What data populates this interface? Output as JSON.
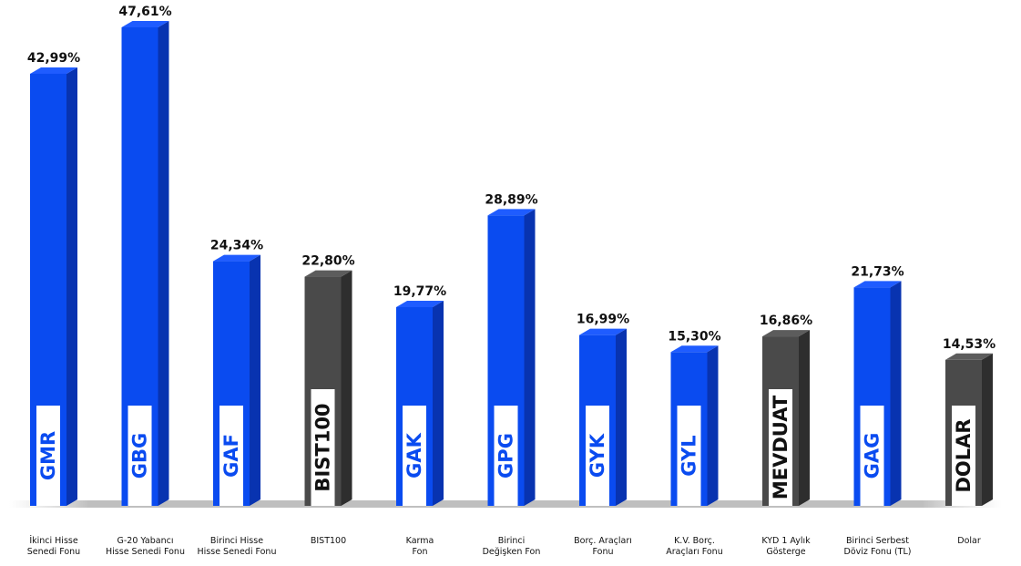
{
  "chart_data": {
    "type": "bar",
    "title": "",
    "xlabel": "",
    "ylabel": "",
    "ylim": [
      0,
      50
    ],
    "grid": false,
    "legend": "none",
    "categories": [
      "İkinci Hisse\nSenedi Fonu",
      "G-20 Yabancı\nHisse Senedi Fonu",
      "Birinci Hisse\nHisse Senedi Fonu",
      "BIST100",
      "Karma\nFon",
      "Birinci\nDeğişken Fon",
      "Borç. Araçları\nFonu",
      "K.V. Borç.\nAraçları Fonu",
      "KYD 1 Aylık\nGösterge",
      "Birinci Serbest\nDöviz Fonu (TL)",
      "Dolar"
    ],
    "codes": [
      "GMR",
      "GBG",
      "GAF",
      "BIST100",
      "GAK",
      "GPG",
      "GYK",
      "GYL",
      "MEVDUAT",
      "GAG",
      "DOLAR"
    ],
    "values": [
      42.99,
      47.61,
      24.34,
      22.8,
      19.77,
      28.89,
      16.99,
      15.3,
      16.86,
      21.73,
      14.53
    ],
    "value_labels": [
      "42,99%",
      "47,61%",
      "24,34%",
      "22,80%",
      "19,77%",
      "28,89%",
      "16,99%",
      "15,30%",
      "16,86%",
      "21,73%",
      "14,53%"
    ],
    "kinds": [
      "fund",
      "fund",
      "fund",
      "benchmark",
      "fund",
      "fund",
      "fund",
      "fund",
      "benchmark",
      "fund",
      "benchmark"
    ],
    "colors": {
      "fund_front": "#0a4bf0",
      "fund_side": "#0833b0",
      "fund_top": "#1f5cff",
      "benchmark_front": "#4a4a4a",
      "benchmark_side": "#2e2e2e",
      "benchmark_top": "#5c5c5c",
      "fund_code_text": "#0a4bf0",
      "benchmark_code_text": "#111111",
      "label_box": "#ffffff"
    }
  }
}
